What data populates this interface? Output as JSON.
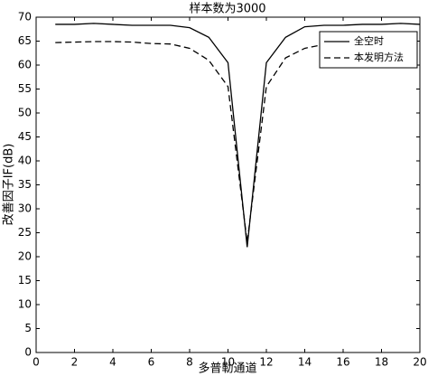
{
  "chart_data": {
    "type": "line",
    "title": "样本数为3000",
    "xlabel": "多普勒通道",
    "ylabel": "改善因子IF(dB)",
    "x": [
      1,
      2,
      3,
      4,
      5,
      6,
      7,
      8,
      9,
      10,
      11,
      12,
      13,
      14,
      15,
      16,
      17,
      18,
      19,
      20
    ],
    "series": [
      {
        "name": "全空时",
        "color": "#000000",
        "style": "solid",
        "values": [
          68.5,
          68.5,
          68.7,
          68.5,
          68.3,
          68.3,
          68.3,
          67.8,
          65.8,
          60.5,
          22,
          60.5,
          65.8,
          68,
          68.3,
          68.3,
          68.5,
          68.5,
          68.7,
          68.5
        ]
      },
      {
        "name": "本发明方法",
        "color": "#000000",
        "style": "dashed",
        "values": [
          64.7,
          64.8,
          64.9,
          64.9,
          64.8,
          64.5,
          64.4,
          63.5,
          61,
          55.5,
          23,
          55.5,
          61.5,
          63.5,
          64.3,
          64.5,
          64.6,
          64.7,
          64.7,
          64.7
        ]
      }
    ],
    "xlim": [
      0,
      20
    ],
    "xticks": [
      0,
      2,
      4,
      6,
      8,
      10,
      12,
      14,
      16,
      18,
      20
    ],
    "ylim": [
      0,
      70
    ],
    "yticks": [
      0,
      5,
      10,
      15,
      20,
      25,
      30,
      35,
      40,
      45,
      50,
      55,
      60,
      65,
      70
    ],
    "grid": false,
    "legend": "top-right"
  }
}
